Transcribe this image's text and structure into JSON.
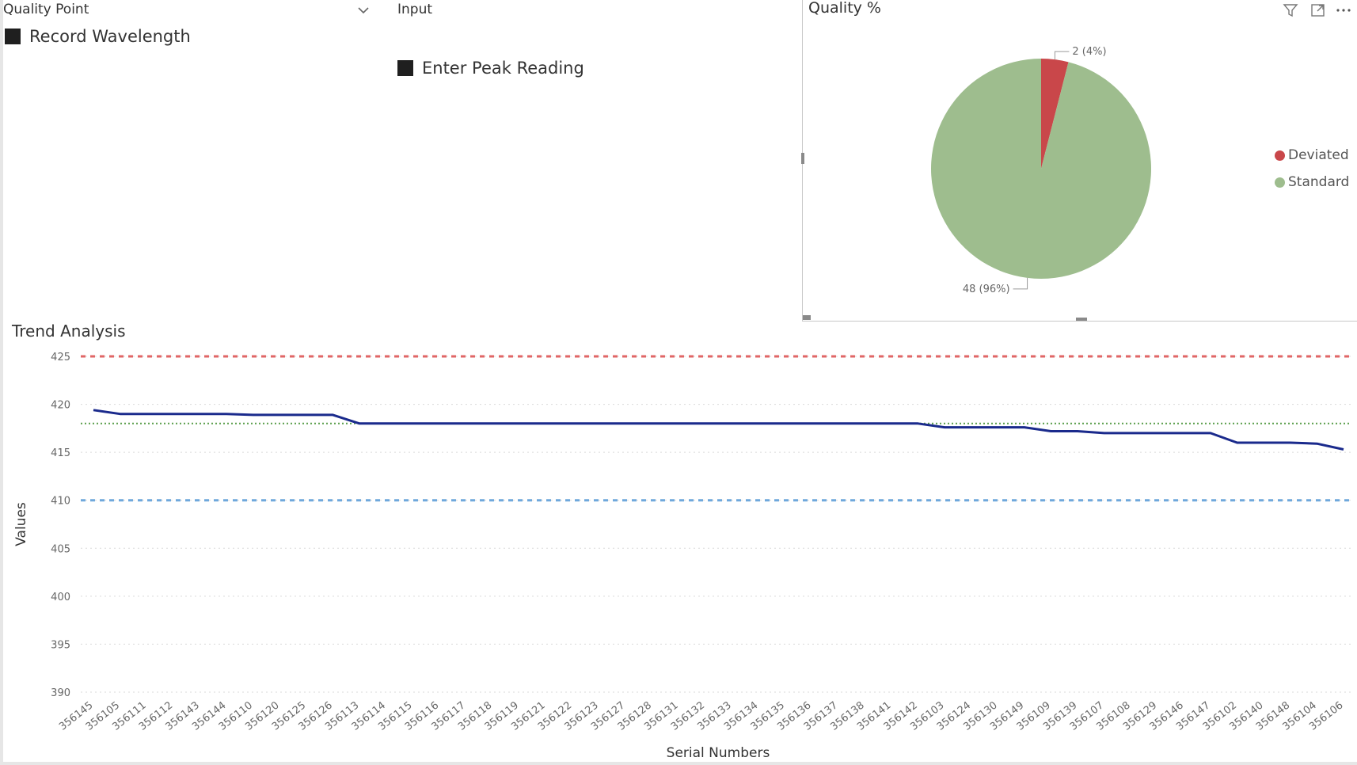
{
  "slicers": {
    "quality_point": {
      "title": "Quality Point",
      "selected": "Record Wavelength"
    },
    "input": {
      "title": "Input",
      "selected": "Enter Peak Reading"
    }
  },
  "pie": {
    "title": "Quality %",
    "label_deviated": "2 (4%)",
    "label_standard": "48 (96%)"
  },
  "trend": {
    "title": "Trend Analysis"
  },
  "colors": {
    "deviated": "#c9474a",
    "standard": "#9ebd8e",
    "line": "#1a2a8c",
    "upper_limit": "#e06666",
    "target": "#5a9e4b",
    "lower_limit": "#6fa8dc"
  },
  "icons": [
    "chevron-down-icon",
    "filter-icon",
    "focus-mode-icon",
    "more-options-icon"
  ],
  "chart_data": [
    {
      "type": "pie",
      "title": "Quality %",
      "legend_position": "right",
      "slices": [
        {
          "name": "Deviated",
          "value": 2,
          "percent": 4
        },
        {
          "name": "Standard",
          "value": 48,
          "percent": 96
        }
      ]
    },
    {
      "type": "line",
      "title": "Trend Analysis",
      "xlabel": "Serial Numbers",
      "ylabel": "Values",
      "ylim": [
        390,
        425
      ],
      "yticks": [
        425,
        420,
        415,
        410,
        405,
        400,
        395,
        390
      ],
      "grid": true,
      "categories": [
        "356145",
        "356105",
        "356111",
        "356112",
        "356143",
        "356144",
        "356110",
        "356120",
        "356125",
        "356126",
        "356113",
        "356114",
        "356115",
        "356116",
        "356117",
        "356118",
        "356119",
        "356121",
        "356122",
        "356123",
        "356127",
        "356128",
        "356131",
        "356132",
        "356133",
        "356134",
        "356135",
        "356136",
        "356137",
        "356138",
        "356141",
        "356142",
        "356103",
        "356124",
        "356130",
        "356149",
        "356109",
        "356139",
        "356107",
        "356108",
        "356129",
        "356146",
        "356147",
        "356102",
        "356140",
        "356148",
        "356104",
        "356106"
      ],
      "series": [
        {
          "values": [
            419.4,
            419.0,
            419.0,
            419.0,
            419.0,
            419.0,
            418.9,
            418.9,
            418.9,
            418.9,
            418.0,
            418.0,
            418.0,
            418.0,
            418.0,
            418.0,
            418.0,
            418.0,
            418.0,
            418.0,
            418.0,
            418.0,
            418.0,
            418.0,
            418.0,
            418.0,
            418.0,
            418.0,
            418.0,
            418.0,
            418.0,
            418.0,
            417.6,
            417.6,
            417.6,
            417.6,
            417.2,
            417.2,
            417.0,
            417.0,
            417.0,
            417.0,
            417.0,
            416.0,
            416.0,
            416.0,
            415.9,
            415.3
          ]
        }
      ],
      "reference_lines": [
        {
          "value": 425,
          "style": "dashed",
          "color": "#e06666"
        },
        {
          "value": 418,
          "style": "dotted",
          "color": "#5a9e4b"
        },
        {
          "value": 410,
          "style": "dashed",
          "color": "#6fa8dc"
        }
      ]
    }
  ]
}
